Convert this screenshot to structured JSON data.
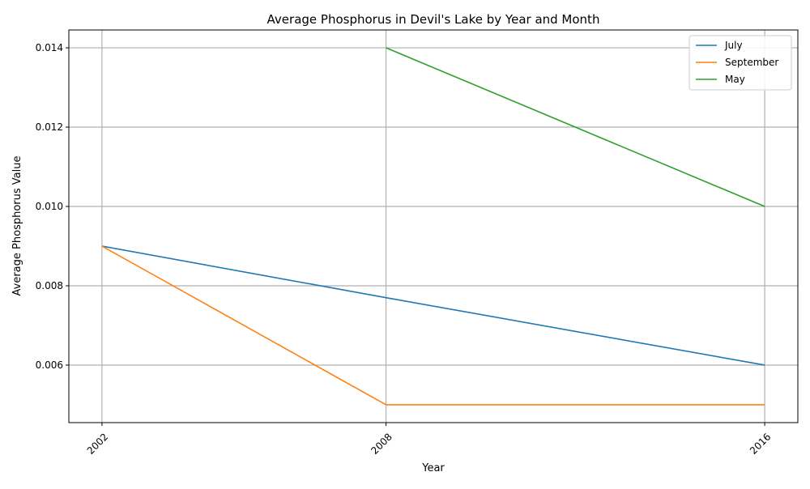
{
  "chart_data": {
    "type": "line",
    "title": "Average Phosphorus in Devil's Lake by Year and Month",
    "xlabel": "Year",
    "ylabel": "Average Phosphorus Value",
    "x_ticks": [
      "2002",
      "2008",
      "2016"
    ],
    "y_ticks": [
      "0.006",
      "0.008",
      "0.010",
      "0.012",
      "0.014"
    ],
    "xlim": [
      2001.3,
      2016.7
    ],
    "ylim": [
      0.00455,
      0.01445
    ],
    "grid": true,
    "legend_position": "top-right",
    "series": [
      {
        "name": "July",
        "color": "#1f77b4",
        "x": [
          2002,
          2008,
          2016
        ],
        "y": [
          0.009,
          0.0077,
          0.006
        ]
      },
      {
        "name": "September",
        "color": "#ff7f0e",
        "x": [
          2002,
          2008,
          2016
        ],
        "y": [
          0.009,
          0.005,
          0.005
        ]
      },
      {
        "name": "May",
        "color": "#2ca02c",
        "x": [
          2008,
          2016
        ],
        "y": [
          0.014,
          0.01
        ]
      }
    ]
  }
}
